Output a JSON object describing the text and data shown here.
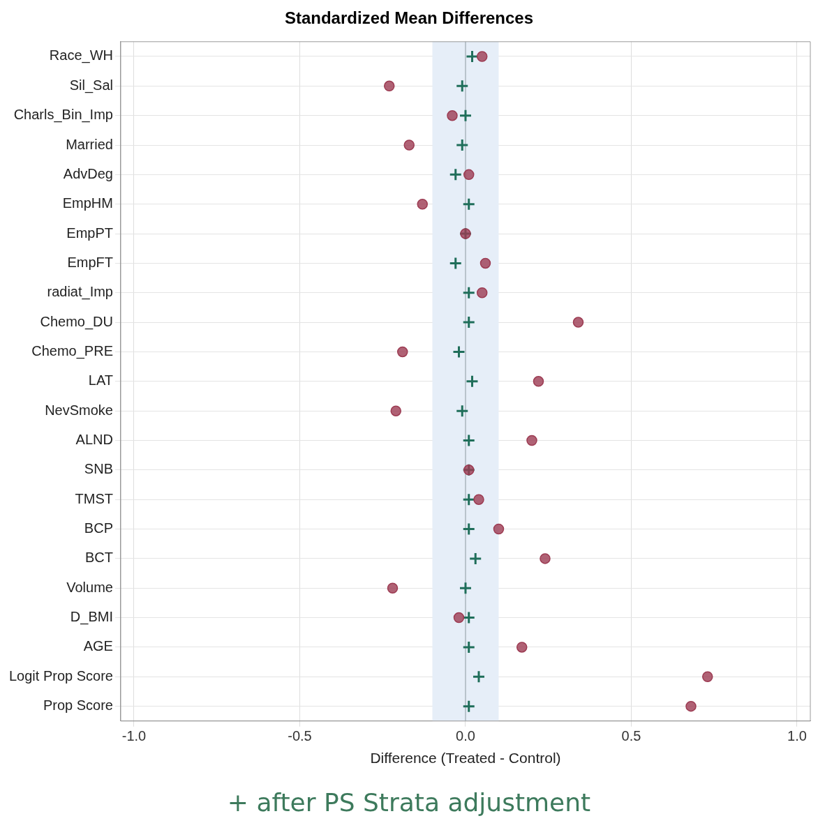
{
  "chart_data": {
    "type": "scatter",
    "title": "Standardized Mean Differences",
    "xlabel": "Difference (Treated - Control)",
    "categories": [
      "Race_WH",
      "Sil_Sal",
      "Charls_Bin_Imp",
      "Married",
      "AdvDeg",
      "EmpHM",
      "EmpPT",
      "EmpFT",
      "radiat_Imp",
      "Chemo_DU",
      "Chemo_PRE",
      "LAT",
      "NevSmoke",
      "ALND",
      "SNB",
      "TMST",
      "BCP",
      "BCT",
      "Volume",
      "D_BMI",
      "AGE",
      "Logit Prop Score",
      "Prop Score"
    ],
    "series": [
      {
        "color": "#9c3b52",
        "marker": "circle",
        "values": [
          0.05,
          -0.23,
          -0.04,
          -0.17,
          0.01,
          -0.13,
          0.0,
          0.06,
          0.05,
          0.34,
          -0.19,
          0.22,
          -0.21,
          0.2,
          0.01,
          0.04,
          0.1,
          0.24,
          -0.22,
          -0.02,
          0.17,
          0.73,
          0.68
        ]
      },
      {
        "color": "#1f6e5a",
        "marker": "cross",
        "values": [
          0.02,
          -0.01,
          0.0,
          -0.01,
          -0.03,
          0.01,
          0.0,
          -0.03,
          0.01,
          0.01,
          -0.02,
          0.02,
          -0.01,
          0.01,
          0.01,
          0.01,
          0.01,
          0.03,
          0.0,
          0.01,
          0.01,
          0.04,
          0.01
        ]
      }
    ],
    "xlim": [
      -1.04,
      1.04
    ],
    "xticks": [
      {
        "value": -1,
        "label": "-1.0"
      },
      {
        "value": -0.5,
        "label": "-0.5"
      },
      {
        "value": 0,
        "label": "0.0"
      },
      {
        "value": 0.5,
        "label": "0.5"
      },
      {
        "value": 1,
        "label": "1.0"
      }
    ],
    "bands": [
      {
        "axis": "x",
        "from": -0.1,
        "to": 0.1,
        "color": "#e6eef8"
      }
    ],
    "ref_lines": [
      {
        "axis": "x",
        "value": 0,
        "color": "#b8c4cc"
      }
    ],
    "grid": true,
    "legend": false,
    "orientation": "horizontal",
    "annotations": [
      "+ after PS Strata adjustment"
    ]
  }
}
